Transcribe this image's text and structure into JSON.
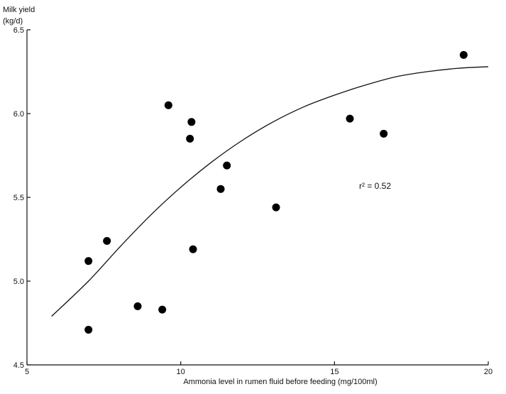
{
  "chart_data": {
    "type": "scatter",
    "xlabel": "Ammonia level in rumen fluid before feeding (mg/100ml)",
    "ylabel_line1": "Milk yield",
    "ylabel_line2": "(kg/d)",
    "xlim": [
      5,
      20
    ],
    "ylim": [
      4.5,
      6.5
    ],
    "x_ticks": [
      5,
      10,
      15,
      20
    ],
    "y_ticks": [
      4.5,
      5.0,
      5.5,
      6.0,
      6.5
    ],
    "x_tick_labels": [
      "5",
      "10",
      "15",
      "20"
    ],
    "y_tick_labels": [
      "4.5",
      "5.0",
      "5.5",
      "6.0",
      "6.5"
    ],
    "points": [
      {
        "x": 7.0,
        "y": 5.12
      },
      {
        "x": 7.0,
        "y": 4.71
      },
      {
        "x": 7.6,
        "y": 5.24
      },
      {
        "x": 8.6,
        "y": 4.85
      },
      {
        "x": 9.4,
        "y": 4.83
      },
      {
        "x": 9.6,
        "y": 6.05
      },
      {
        "x": 10.3,
        "y": 5.85
      },
      {
        "x": 10.35,
        "y": 5.95
      },
      {
        "x": 10.4,
        "y": 5.19
      },
      {
        "x": 11.3,
        "y": 5.55
      },
      {
        "x": 11.5,
        "y": 5.69
      },
      {
        "x": 13.1,
        "y": 5.44
      },
      {
        "x": 15.5,
        "y": 5.97
      },
      {
        "x": 16.6,
        "y": 5.88
      },
      {
        "x": 19.2,
        "y": 6.35
      }
    ],
    "fit_curve": [
      {
        "x": 5.8,
        "y": 4.79
      },
      {
        "x": 7.0,
        "y": 5.0
      },
      {
        "x": 8.0,
        "y": 5.2
      },
      {
        "x": 9.0,
        "y": 5.39
      },
      {
        "x": 10.0,
        "y": 5.56
      },
      {
        "x": 11.0,
        "y": 5.71
      },
      {
        "x": 12.0,
        "y": 5.84
      },
      {
        "x": 13.0,
        "y": 5.95
      },
      {
        "x": 14.0,
        "y": 6.04
      },
      {
        "x": 15.0,
        "y": 6.11
      },
      {
        "x": 16.0,
        "y": 6.17
      },
      {
        "x": 17.0,
        "y": 6.22
      },
      {
        "x": 18.0,
        "y": 6.25
      },
      {
        "x": 19.0,
        "y": 6.27
      },
      {
        "x": 20.0,
        "y": 6.28
      }
    ],
    "annotation": "r² = 0.52",
    "annotation_x": 15.8,
    "annotation_y": 5.55,
    "grid": false,
    "legend": "none"
  }
}
